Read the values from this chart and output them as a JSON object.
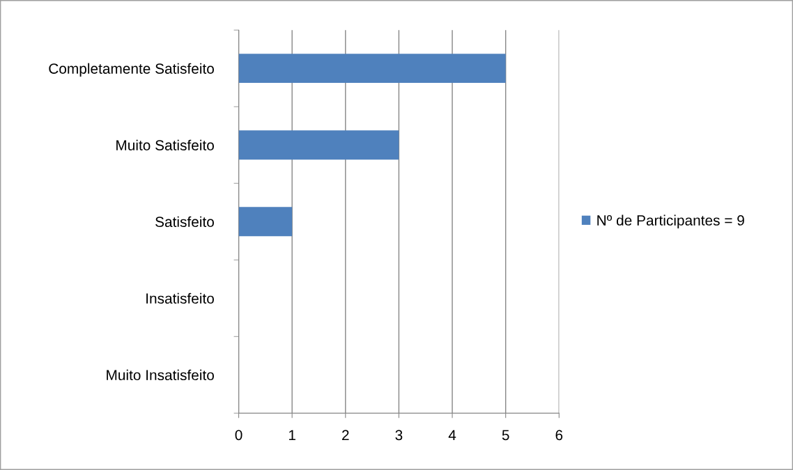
{
  "chart_data": {
    "type": "bar",
    "orientation": "horizontal",
    "categories": [
      "Completamente Satisfeito",
      "Muito Satisfeito",
      "Satisfeito",
      "Insatisfeito",
      "Muito Insatisfeito"
    ],
    "series": [
      {
        "name": "Nº de Participantes = 9",
        "color": "#4f81bd",
        "values": [
          5,
          3,
          1,
          0,
          0
        ]
      }
    ],
    "xlim": [
      0,
      6
    ],
    "xticks": [
      0,
      1,
      2,
      3,
      4,
      5,
      6
    ],
    "grid": "x",
    "legend": "right"
  }
}
